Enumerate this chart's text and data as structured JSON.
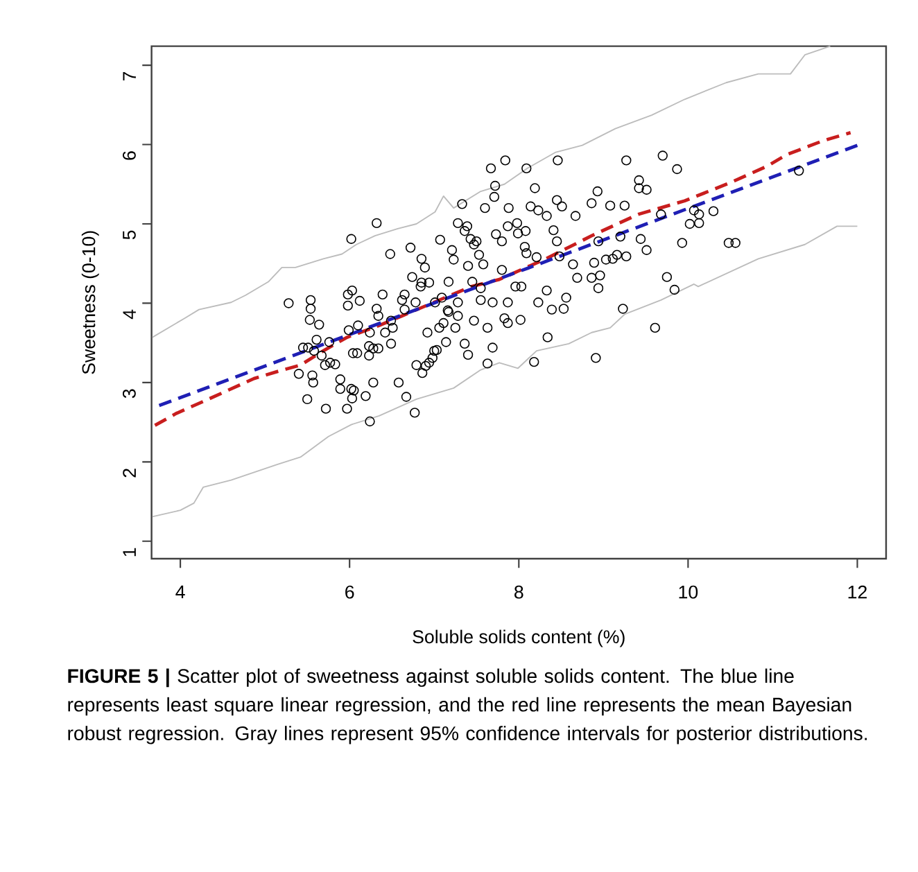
{
  "chart_data": {
    "type": "scatter",
    "xlabel": "Soluble solids content (%)",
    "ylabel": "Sweetness (0-10)",
    "xlim": [
      3.66,
      12.34
    ],
    "ylim": [
      0.78,
      7.24
    ],
    "xticks": [
      4,
      6,
      8,
      10,
      12
    ],
    "yticks": [
      1,
      2,
      3,
      4,
      5,
      6,
      7
    ],
    "marker": "circle",
    "annotations": [
      "**FIGURE 5 |** Scatter plot of sweetness against soluble solids content. The blue line represents least square linear regression, and the red line represents the mean Bayesian robust regression. Gray lines represent 95% confidence intervals for posterior distributions."
    ],
    "series": [
      {
        "color": "#000000",
        "x": [
          5.28,
          5.54,
          5.54,
          6.02,
          6.32,
          6.48,
          6.72,
          6.74,
          6.85,
          6.89,
          6.94,
          6.85,
          7.07,
          7.17,
          7.21,
          7.23,
          7.28,
          7.33,
          7.36,
          7.39,
          7.4,
          7.43,
          7.47,
          7.5,
          7.53,
          7.58,
          7.45,
          7.55,
          7.6,
          7.67,
          7.72,
          7.71,
          7.84,
          7.88,
          7.87,
          7.73,
          7.8,
          7.8,
          7.98,
          7.99,
          8.09,
          8.08,
          5.98,
          5.98,
          6.03,
          6.12,
          6.32,
          6.39,
          6.62,
          6.65,
          6.78,
          7.01,
          7.16,
          7.28,
          7.55,
          7.69,
          7.87,
          8.46,
          9.27,
          9.7,
          9.87,
          9.42,
          9.42,
          9.51,
          8.19,
          8.93,
          8.45,
          8.51,
          8.86,
          9.08,
          9.25,
          8.14,
          8.23,
          8.33,
          8.67,
          8.41,
          8.45,
          8.07,
          8.09,
          8.21,
          8.48,
          8.94,
          9.2,
          9.68,
          10.02,
          10.07,
          10.13,
          10.13,
          10.3,
          9.93,
          9.44,
          9.51,
          10.48,
          10.56,
          11.31,
          8.64,
          8.69,
          8.89,
          8.86,
          8.96,
          8.94,
          9.03,
          9.11,
          9.16,
          9.27,
          9.75,
          9.84,
          9.23,
          8.03,
          8.33,
          8.23,
          8.39,
          8.53,
          8.56,
          7.96,
          7.83,
          7.87,
          8.02,
          8.34,
          8.18,
          8.91,
          9.61,
          5.53,
          5.64,
          5.61,
          5.45,
          5.51,
          5.58,
          5.4,
          5.56,
          5.57,
          5.5,
          5.72,
          5.67,
          5.71,
          5.77,
          5.83,
          5.76,
          5.89,
          5.89,
          6.02,
          6.05,
          6.03,
          5.97,
          6.19,
          6.24,
          6.28,
          6.04,
          6.09,
          5.99,
          6.1,
          6.23,
          6.28,
          6.34,
          6.23,
          6.49,
          6.58,
          6.67,
          6.77,
          6.79,
          6.86,
          6.9,
          6.94,
          6.98,
          7.0,
          7.03,
          6.92,
          7.06,
          7.14,
          7.11,
          7.25,
          7.28,
          7.17,
          7.36,
          7.4,
          7.47,
          7.63,
          7.63,
          7.69,
          6.49,
          6.51,
          6.42,
          6.34,
          6.24,
          6.65,
          6.84,
          7.09
        ],
        "values": [
          4.0,
          4.04,
          3.93,
          4.81,
          5.01,
          4.62,
          4.7,
          4.33,
          4.56,
          4.45,
          4.26,
          4.26,
          4.8,
          4.27,
          4.67,
          4.55,
          5.01,
          5.25,
          4.91,
          4.97,
          4.47,
          4.81,
          4.74,
          4.78,
          4.61,
          4.49,
          4.27,
          4.19,
          5.2,
          5.7,
          5.48,
          5.34,
          5.8,
          5.2,
          4.97,
          4.87,
          4.78,
          4.42,
          5.01,
          4.88,
          5.7,
          4.91,
          4.11,
          3.97,
          4.16,
          4.03,
          3.93,
          4.11,
          4.04,
          4.11,
          4.01,
          4.01,
          3.91,
          4.01,
          4.04,
          4.01,
          4.01,
          5.8,
          5.8,
          5.86,
          5.69,
          5.55,
          5.45,
          5.43,
          5.45,
          5.41,
          5.3,
          5.22,
          5.26,
          5.23,
          5.23,
          5.22,
          5.17,
          5.1,
          5.1,
          4.92,
          4.78,
          4.71,
          4.63,
          4.58,
          4.59,
          4.78,
          4.84,
          5.12,
          5.0,
          5.17,
          5.12,
          5.01,
          5.16,
          4.76,
          4.81,
          4.67,
          4.76,
          4.76,
          5.67,
          4.49,
          4.32,
          4.51,
          4.32,
          4.35,
          4.19,
          4.55,
          4.56,
          4.61,
          4.59,
          4.33,
          4.17,
          3.93,
          4.21,
          4.16,
          4.01,
          3.92,
          3.93,
          4.07,
          4.21,
          3.81,
          3.75,
          3.79,
          3.57,
          3.26,
          3.31,
          3.69,
          3.79,
          3.73,
          3.54,
          3.44,
          3.44,
          3.4,
          3.11,
          3.09,
          3.0,
          2.79,
          2.67,
          3.34,
          3.22,
          3.25,
          3.23,
          3.51,
          3.04,
          2.92,
          2.92,
          2.9,
          2.8,
          2.67,
          2.83,
          2.51,
          3.0,
          3.37,
          3.37,
          3.66,
          3.72,
          3.46,
          3.43,
          3.43,
          3.34,
          3.49,
          3.0,
          2.82,
          2.62,
          3.22,
          3.12,
          3.21,
          3.25,
          3.31,
          3.4,
          3.41,
          3.63,
          3.69,
          3.51,
          3.75,
          3.69,
          3.84,
          3.89,
          3.49,
          3.35,
          3.78,
          3.69,
          3.24,
          3.44,
          3.78,
          3.69,
          3.63,
          3.84,
          3.63,
          3.92,
          4.21,
          4.07
        ]
      },
      {
        "type": "line",
        "marker": "none",
        "color": "#bcbcbc",
        "line_style": "solid",
        "x": [
          3.67,
          4.05,
          4.22,
          4.6,
          4.77,
          5.04,
          5.2,
          5.36,
          5.69,
          5.91,
          6.08,
          6.3,
          6.57,
          6.79,
          7.01,
          7.11,
          7.23,
          7.55,
          7.83,
          8.1,
          8.43,
          8.75,
          9.14,
          9.57,
          9.96,
          10.45,
          10.83,
          11.21,
          11.38,
          11.68
        ],
        "values": [
          3.57,
          3.81,
          3.92,
          4.01,
          4.1,
          4.27,
          4.45,
          4.45,
          4.56,
          4.62,
          4.74,
          4.85,
          4.94,
          5.0,
          5.15,
          5.35,
          5.2,
          5.41,
          5.5,
          5.7,
          5.9,
          5.99,
          6.2,
          6.37,
          6.57,
          6.78,
          6.89,
          6.89,
          7.13,
          7.24
        ]
      },
      {
        "type": "line",
        "marker": "none",
        "color": "#bcbcbc",
        "line_style": "solid",
        "x": [
          3.67,
          4.0,
          4.16,
          4.27,
          4.6,
          5.15,
          5.42,
          5.75,
          6.02,
          6.35,
          6.79,
          7.23,
          7.55,
          7.77,
          7.99,
          8.21,
          8.59,
          8.86,
          9.08,
          9.25,
          9.68,
          10.07,
          10.12,
          10.83,
          11.38,
          11.76,
          12.0
        ],
        "values": [
          1.31,
          1.39,
          1.48,
          1.68,
          1.77,
          1.97,
          2.06,
          2.32,
          2.47,
          2.58,
          2.79,
          2.93,
          3.16,
          3.25,
          3.18,
          3.4,
          3.49,
          3.63,
          3.69,
          3.86,
          4.04,
          4.24,
          4.21,
          4.56,
          4.74,
          4.97,
          4.97
        ]
      },
      {
        "type": "line",
        "marker": "none",
        "color": "#c81e1e",
        "line_style": "dashed",
        "x": [
          3.7,
          3.95,
          4.33,
          4.87,
          5.15,
          5.42,
          5.69,
          5.97,
          6.35,
          6.62,
          7.06,
          7.44,
          7.77,
          8.32,
          8.86,
          9.41,
          9.96,
          10.5,
          10.94,
          11.16,
          11.6,
          11.92
        ],
        "values": [
          2.46,
          2.61,
          2.79,
          3.05,
          3.14,
          3.22,
          3.4,
          3.57,
          3.72,
          3.84,
          4.04,
          4.21,
          4.3,
          4.56,
          4.85,
          5.12,
          5.29,
          5.52,
          5.73,
          5.87,
          6.05,
          6.15
        ]
      },
      {
        "type": "line",
        "marker": "none",
        "color": "#1f1fb4",
        "line_style": "dashed",
        "x": [
          3.75,
          12.0
        ],
        "values": [
          2.71,
          5.99
        ]
      }
    ]
  }
}
